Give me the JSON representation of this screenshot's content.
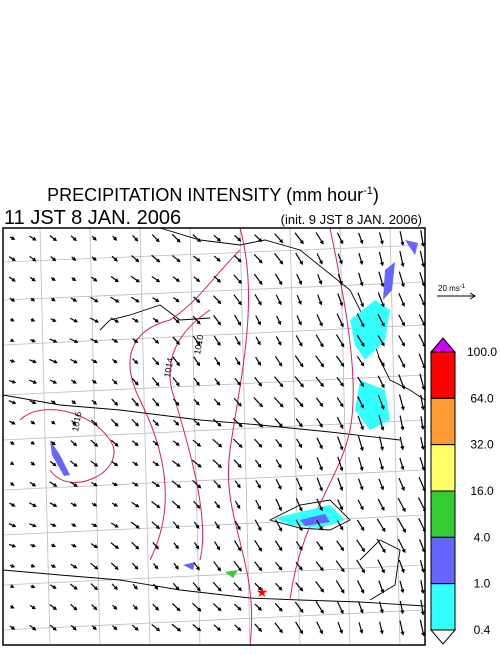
{
  "header": {
    "title": "PRECIPITATION INTENSITY (mm hour",
    "title_sup": "-1",
    "title_end": ")",
    "valid_time": "11 JST 8 JAN. 2006",
    "init_time": "(init. 9 JST 8 JAN. 2006)"
  },
  "wind_scale": {
    "label": "20 ms",
    "sup": "-1"
  },
  "contour_labels": [
    "1016",
    "1014",
    "1010"
  ],
  "colorbar": {
    "labels": [
      "100.0",
      "64.0",
      "32.0",
      "16.0",
      "4.0",
      "1.0",
      "0.4"
    ],
    "colors": [
      "#cc00ff",
      "#ff0000",
      "#ff9933",
      "#ffff66",
      "#33cc33",
      "#6666ff",
      "#33ffff",
      "#ffffff"
    ]
  }
}
